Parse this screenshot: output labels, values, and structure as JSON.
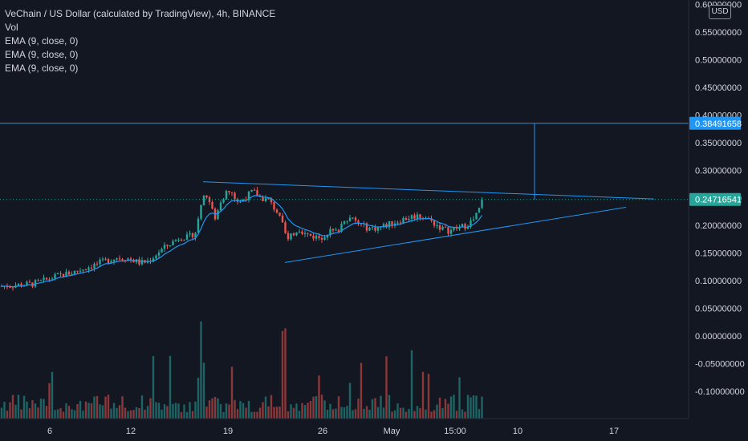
{
  "legend": {
    "title": "VeChain / US Dollar (calculated by TradingView), 4h, BINANCE",
    "vol": "Vol",
    "ema1": "EMA (9, close, 0)",
    "ema2": "EMA (9, close, 0)",
    "ema3": "EMA (9, close, 0)"
  },
  "currency_button": "USD",
  "colors": {
    "background": "#131722",
    "up": "#26a69a",
    "down": "#ef5350",
    "ema": "#2196f3",
    "drawing": "#2196f3",
    "axis_text": "#d1d4dc",
    "price_label_bg": "#2196f3"
  },
  "chart_data": {
    "type": "candlestick",
    "symbol": "VeChain / US Dollar",
    "timeframe": "4h",
    "exchange": "BINANCE",
    "y_ticks": [
      "0.60000000",
      "0.55000000",
      "0.50000000",
      "0.45000000",
      "0.40000000",
      "0.35000000",
      "0.30000000",
      "0.25000000",
      "0.20000000",
      "0.15000000",
      "0.10000000",
      "0.05000000",
      "0.00000000",
      "-0.05000000",
      "-0.10000000"
    ],
    "x_ticks": [
      "6",
      "12",
      "19",
      "26",
      "May",
      "15:00",
      "10",
      "17"
    ],
    "price_labels": [
      {
        "name": "target-price",
        "value": "0.38491658"
      },
      {
        "name": "last-price",
        "value": "0.24716541"
      }
    ],
    "close_path": [
      [
        0,
        0.09
      ],
      [
        20,
        0.092
      ],
      [
        40,
        0.094
      ],
      [
        55,
        0.1
      ],
      [
        70,
        0.108
      ],
      [
        90,
        0.115
      ],
      [
        110,
        0.125
      ],
      [
        130,
        0.135
      ],
      [
        145,
        0.142
      ],
      [
        160,
        0.14
      ],
      [
        175,
        0.132
      ],
      [
        185,
        0.135
      ],
      [
        200,
        0.155
      ],
      [
        215,
        0.17
      ],
      [
        225,
        0.18
      ],
      [
        235,
        0.178
      ],
      [
        245,
        0.19
      ],
      [
        250,
        0.24
      ],
      [
        255,
        0.26
      ],
      [
        262,
        0.24
      ],
      [
        268,
        0.21
      ],
      [
        275,
        0.245
      ],
      [
        283,
        0.262
      ],
      [
        290,
        0.255
      ],
      [
        298,
        0.24
      ],
      [
        305,
        0.25
      ],
      [
        315,
        0.262
      ],
      [
        325,
        0.25
      ],
      [
        335,
        0.245
      ],
      [
        345,
        0.225
      ],
      [
        352,
        0.2
      ],
      [
        358,
        0.17
      ],
      [
        365,
        0.185
      ],
      [
        372,
        0.195
      ],
      [
        380,
        0.185
      ],
      [
        390,
        0.18
      ],
      [
        400,
        0.178
      ],
      [
        410,
        0.19
      ],
      [
        420,
        0.188
      ],
      [
        430,
        0.215
      ],
      [
        440,
        0.21
      ],
      [
        450,
        0.2
      ],
      [
        460,
        0.195
      ],
      [
        470,
        0.195
      ],
      [
        480,
        0.2
      ],
      [
        490,
        0.205
      ],
      [
        500,
        0.21
      ],
      [
        510,
        0.215
      ],
      [
        520,
        0.218
      ],
      [
        530,
        0.215
      ],
      [
        540,
        0.205
      ],
      [
        550,
        0.195
      ],
      [
        560,
        0.19
      ],
      [
        570,
        0.195
      ],
      [
        580,
        0.2
      ],
      [
        590,
        0.21
      ],
      [
        596,
        0.225
      ],
      [
        602,
        0.247
      ]
    ],
    "triangle": {
      "upper": [
        [
          253,
          0.279
        ],
        [
          815,
          0.248
        ]
      ],
      "lower": [
        [
          355,
          0.133
        ],
        [
          780,
          0.233
        ]
      ],
      "target_line": {
        "value": 0.38491658,
        "x_end": 666
      },
      "target_vertical": {
        "x": 666,
        "from": 0.247,
        "to": 0.38491658
      }
    }
  }
}
